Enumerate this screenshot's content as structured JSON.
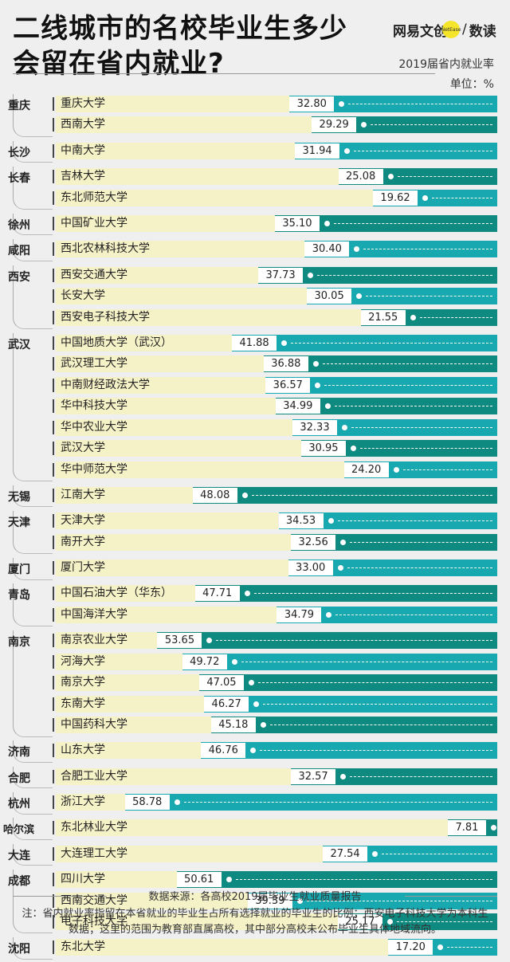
{
  "title": {
    "line1": "二线城市的名校毕业生多少",
    "line2": "会留在省内就业?"
  },
  "brand": {
    "name_a": "网易文创",
    "name_badge": "NetEase",
    "separator": "/",
    "name_b": "数读"
  },
  "chart_title": "2019届省内就业率",
  "unit": "单位：%",
  "source": "数据来源：各高校2019届毕业生就业质量报告",
  "note": "注：省内就业率指留在本省就业的毕业生占所有选择就业的毕业生的比例；西安电子科技大学为本科生数据；这里的范围为教育部直属高校，其中部分高校未公布毕业生具体地域流向。",
  "colors": {
    "teal": "#18a9b0",
    "dark_teal": "#0f8a80",
    "pale_row": "#f6f2c8",
    "background": "#efefef"
  },
  "chart_data": {
    "type": "bar",
    "orientation": "horizontal",
    "title": "2019届省内就业率",
    "unit": "%",
    "xlim": [
      0,
      60
    ],
    "groups": [
      {
        "city": "重庆",
        "items": [
          {
            "name": "重庆大学",
            "value": 32.8,
            "label": "32.80"
          },
          {
            "name": "西南大学",
            "value": 29.29,
            "label": "29.29"
          }
        ]
      },
      {
        "city": "长沙",
        "items": [
          {
            "name": "中南大学",
            "value": 31.94,
            "label": "31.94"
          }
        ]
      },
      {
        "city": "长春",
        "items": [
          {
            "name": "吉林大学",
            "value": 25.08,
            "label": "25.08"
          },
          {
            "name": "东北师范大学",
            "value": 19.62,
            "label": "19.62"
          }
        ]
      },
      {
        "city": "徐州",
        "items": [
          {
            "name": "中国矿业大学",
            "value": 35.1,
            "label": "35.10"
          }
        ]
      },
      {
        "city": "咸阳",
        "items": [
          {
            "name": "西北农林科技大学",
            "value": 30.4,
            "label": "30.40"
          }
        ]
      },
      {
        "city": "西安",
        "items": [
          {
            "name": "西安交通大学",
            "value": 37.73,
            "label": "37.73"
          },
          {
            "name": "长安大学",
            "value": 30.05,
            "label": "30.05"
          },
          {
            "name": "西安电子科技大学",
            "value": 21.55,
            "label": "21.55"
          }
        ]
      },
      {
        "city": "武汉",
        "items": [
          {
            "name": "中国地质大学（武汉）",
            "value": 41.88,
            "label": "41.88"
          },
          {
            "name": "武汉理工大学",
            "value": 36.88,
            "label": "36.88"
          },
          {
            "name": "中南财经政法大学",
            "value": 36.57,
            "label": "36.57"
          },
          {
            "name": "华中科技大学",
            "value": 34.99,
            "label": "34.99"
          },
          {
            "name": "华中农业大学",
            "value": 32.33,
            "label": "32.33"
          },
          {
            "name": "武汉大学",
            "value": 30.95,
            "label": "30.95"
          },
          {
            "name": "华中师范大学",
            "value": 24.2,
            "label": "24.20"
          }
        ]
      },
      {
        "city": "无锡",
        "items": [
          {
            "name": "江南大学",
            "value": 48.08,
            "label": "48.08"
          }
        ]
      },
      {
        "city": "天津",
        "items": [
          {
            "name": "天津大学",
            "value": 34.53,
            "label": "34.53"
          },
          {
            "name": "南开大学",
            "value": 32.56,
            "label": "32.56"
          }
        ]
      },
      {
        "city": "厦门",
        "items": [
          {
            "name": "厦门大学",
            "value": 33.0,
            "label": "33.00"
          }
        ]
      },
      {
        "city": "青岛",
        "items": [
          {
            "name": "中国石油大学（华东）",
            "value": 47.71,
            "label": "47.71"
          },
          {
            "name": "中国海洋大学",
            "value": 34.79,
            "label": "34.79"
          }
        ]
      },
      {
        "city": "南京",
        "items": [
          {
            "name": "南京农业大学",
            "value": 53.65,
            "label": "53.65"
          },
          {
            "name": "河海大学",
            "value": 49.72,
            "label": "49.72"
          },
          {
            "name": "南京大学",
            "value": 47.05,
            "label": "47.05"
          },
          {
            "name": "东南大学",
            "value": 46.27,
            "label": "46.27"
          },
          {
            "name": "中国药科大学",
            "value": 45.18,
            "label": "45.18"
          }
        ]
      },
      {
        "city": "济南",
        "items": [
          {
            "name": "山东大学",
            "value": 46.76,
            "label": "46.76"
          }
        ]
      },
      {
        "city": "合肥",
        "items": [
          {
            "name": "合肥工业大学",
            "value": 32.57,
            "label": "32.57"
          }
        ]
      },
      {
        "city": "杭州",
        "items": [
          {
            "name": "浙江大学",
            "value": 58.78,
            "label": "58.78"
          }
        ]
      },
      {
        "city": "哈尔滨",
        "items": [
          {
            "name": "东北林业大学",
            "value": 7.81,
            "label": "7.81"
          }
        ]
      },
      {
        "city": "大连",
        "items": [
          {
            "name": "大连理工大学",
            "value": 27.54,
            "label": "27.54"
          }
        ]
      },
      {
        "city": "成都",
        "items": [
          {
            "name": "四川大学",
            "value": 50.61,
            "label": "50.61"
          },
          {
            "name": "西南交通大学",
            "value": 39.39,
            "label": "39.39"
          },
          {
            "name": "电子科技大学",
            "value": 25.17,
            "label": "25.17"
          }
        ]
      },
      {
        "city": "沈阳",
        "items": [
          {
            "name": "东北大学",
            "value": 17.2,
            "label": "17.20"
          }
        ]
      }
    ]
  }
}
